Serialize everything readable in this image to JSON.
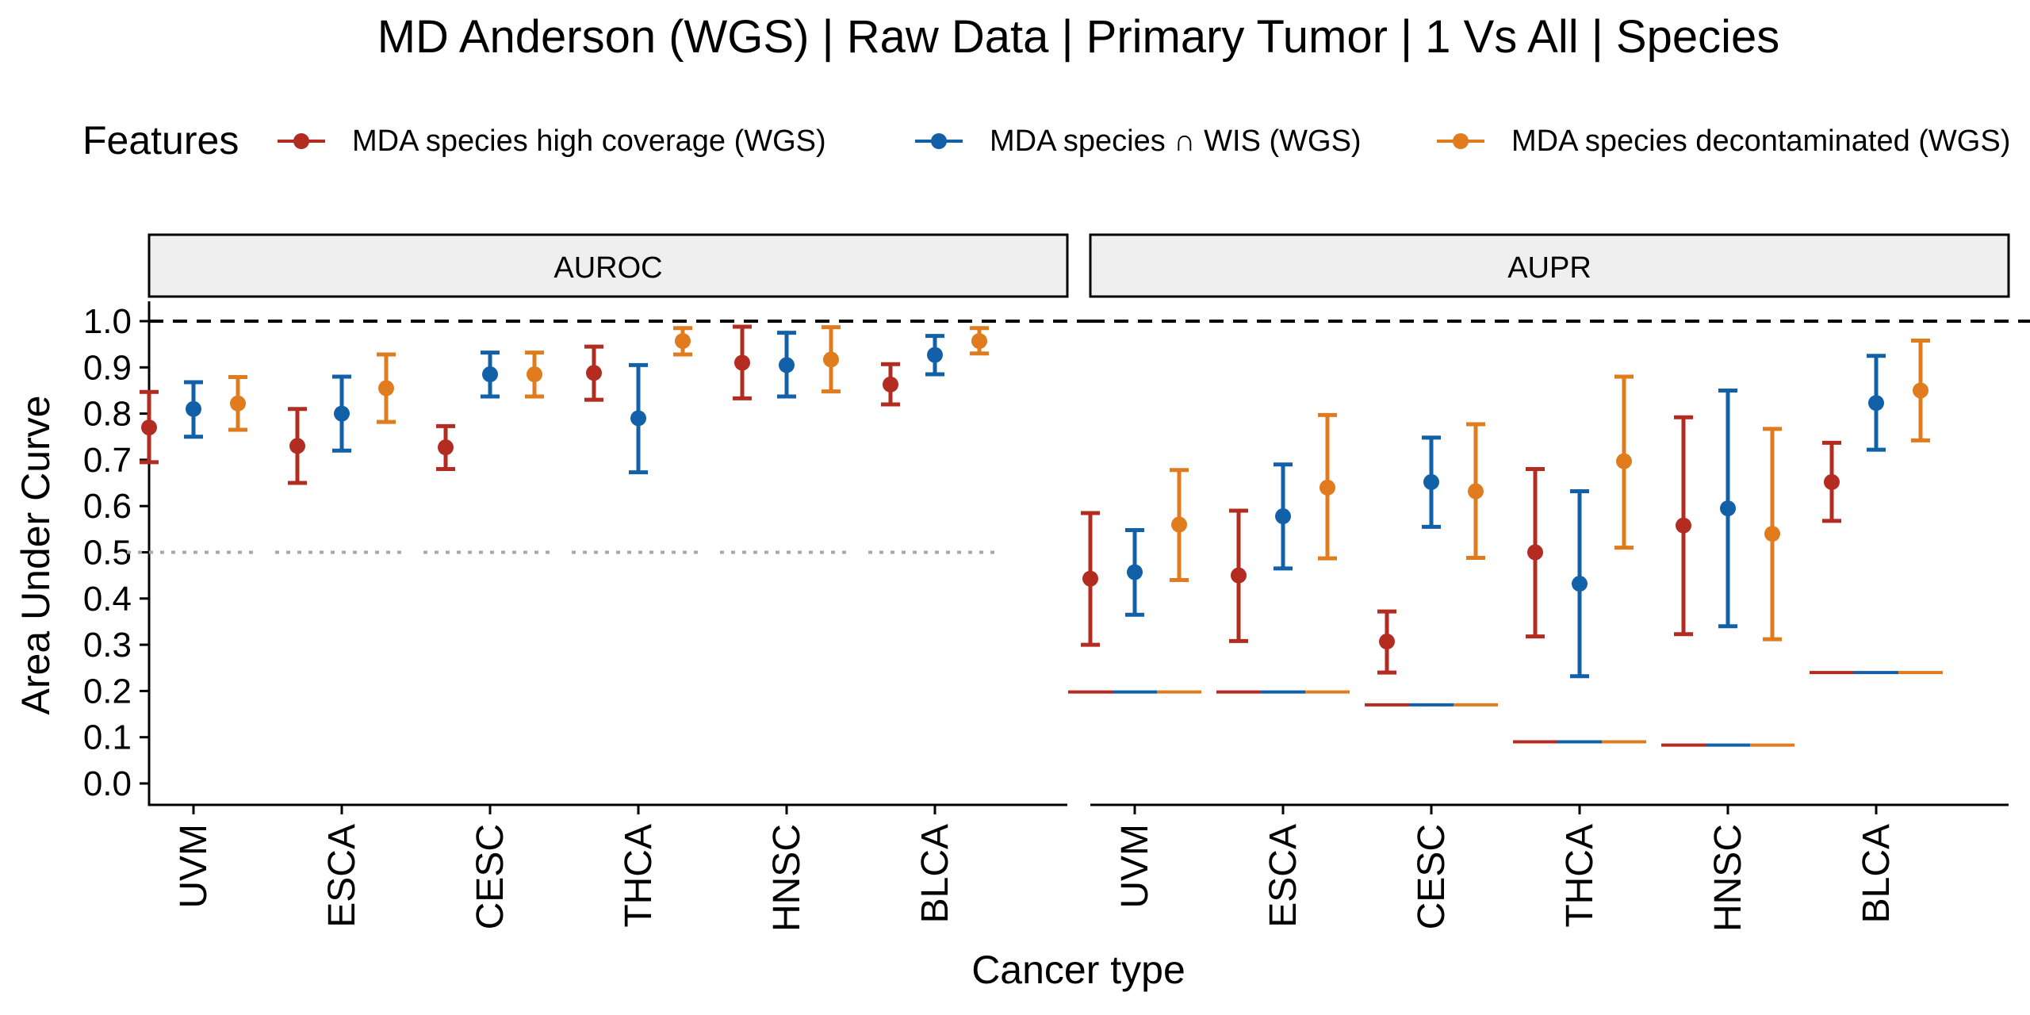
{
  "chart_data": {
    "type": "errorbar",
    "title": "MD Anderson (WGS) | Raw Data | Primary Tumor | 1 Vs All | Species",
    "xlabel": "Cancer type",
    "ylabel": "Area Under Curve",
    "ylim": [
      0.0,
      1.0
    ],
    "yticks": [
      "0.0",
      "0.1",
      "0.2",
      "0.3",
      "0.4",
      "0.5",
      "0.6",
      "0.7",
      "0.8",
      "0.9",
      "1.0"
    ],
    "categories": [
      "UVM",
      "ESCA",
      "CESC",
      "THCA",
      "HNSC",
      "BLCA"
    ],
    "legend": {
      "title": "Features",
      "position": "top",
      "entries": [
        {
          "label": "MDA species high coverage (WGS)",
          "color": "#B22C21"
        },
        {
          "label": "MDA species ∩ WIS (WGS)",
          "color": "#1260A8"
        },
        {
          "label": "MDA species decontaminated (WGS)",
          "color": "#E07B1E"
        }
      ]
    },
    "reference_lines": {
      "max": 1.0,
      "auroc_chance": 0.5
    },
    "panels": [
      {
        "name": "AUROC",
        "series": [
          {
            "name": "MDA species high coverage (WGS)",
            "values": [
              0.77,
              0.73,
              0.727,
              0.888,
              0.91,
              0.863
            ],
            "lower": [
              0.695,
              0.65,
              0.68,
              0.83,
              0.833,
              0.82
            ],
            "upper": [
              0.847,
              0.81,
              0.773,
              0.945,
              0.988,
              0.907
            ]
          },
          {
            "name": "MDA species ∩ WIS (WGS)",
            "values": [
              0.81,
              0.8,
              0.885,
              0.79,
              0.905,
              0.927
            ],
            "lower": [
              0.75,
              0.72,
              0.837,
              0.673,
              0.837,
              0.885
            ],
            "upper": [
              0.868,
              0.88,
              0.932,
              0.905,
              0.975,
              0.968
            ]
          },
          {
            "name": "MDA species decontaminated (WGS)",
            "values": [
              0.822,
              0.855,
              0.885,
              0.957,
              0.917,
              0.957
            ],
            "lower": [
              0.765,
              0.782,
              0.837,
              0.928,
              0.848,
              0.93
            ],
            "upper": [
              0.879,
              0.928,
              0.932,
              0.985,
              0.987,
              0.985
            ]
          }
        ]
      },
      {
        "name": "AUPR",
        "baselines": [
          0.198,
          0.198,
          0.17,
          0.09,
          0.083,
          0.24
        ],
        "series": [
          {
            "name": "MDA species high coverage (WGS)",
            "values": [
              0.443,
              0.45,
              0.307,
              0.5,
              0.558,
              0.652
            ],
            "lower": [
              0.3,
              0.308,
              0.24,
              0.318,
              0.323,
              0.568
            ],
            "upper": [
              0.585,
              0.59,
              0.372,
              0.68,
              0.792,
              0.737
            ]
          },
          {
            "name": "MDA species ∩ WIS (WGS)",
            "values": [
              0.457,
              0.578,
              0.652,
              0.432,
              0.595,
              0.823
            ],
            "lower": [
              0.365,
              0.465,
              0.555,
              0.232,
              0.34,
              0.722
            ],
            "upper": [
              0.548,
              0.69,
              0.748,
              0.632,
              0.85,
              0.925
            ]
          },
          {
            "name": "MDA species decontaminated (WGS)",
            "values": [
              0.56,
              0.64,
              0.632,
              0.697,
              0.54,
              0.85
            ],
            "lower": [
              0.44,
              0.487,
              0.488,
              0.51,
              0.312,
              0.742
            ],
            "upper": [
              0.678,
              0.797,
              0.777,
              0.88,
              0.767,
              0.958
            ]
          }
        ]
      }
    ]
  }
}
